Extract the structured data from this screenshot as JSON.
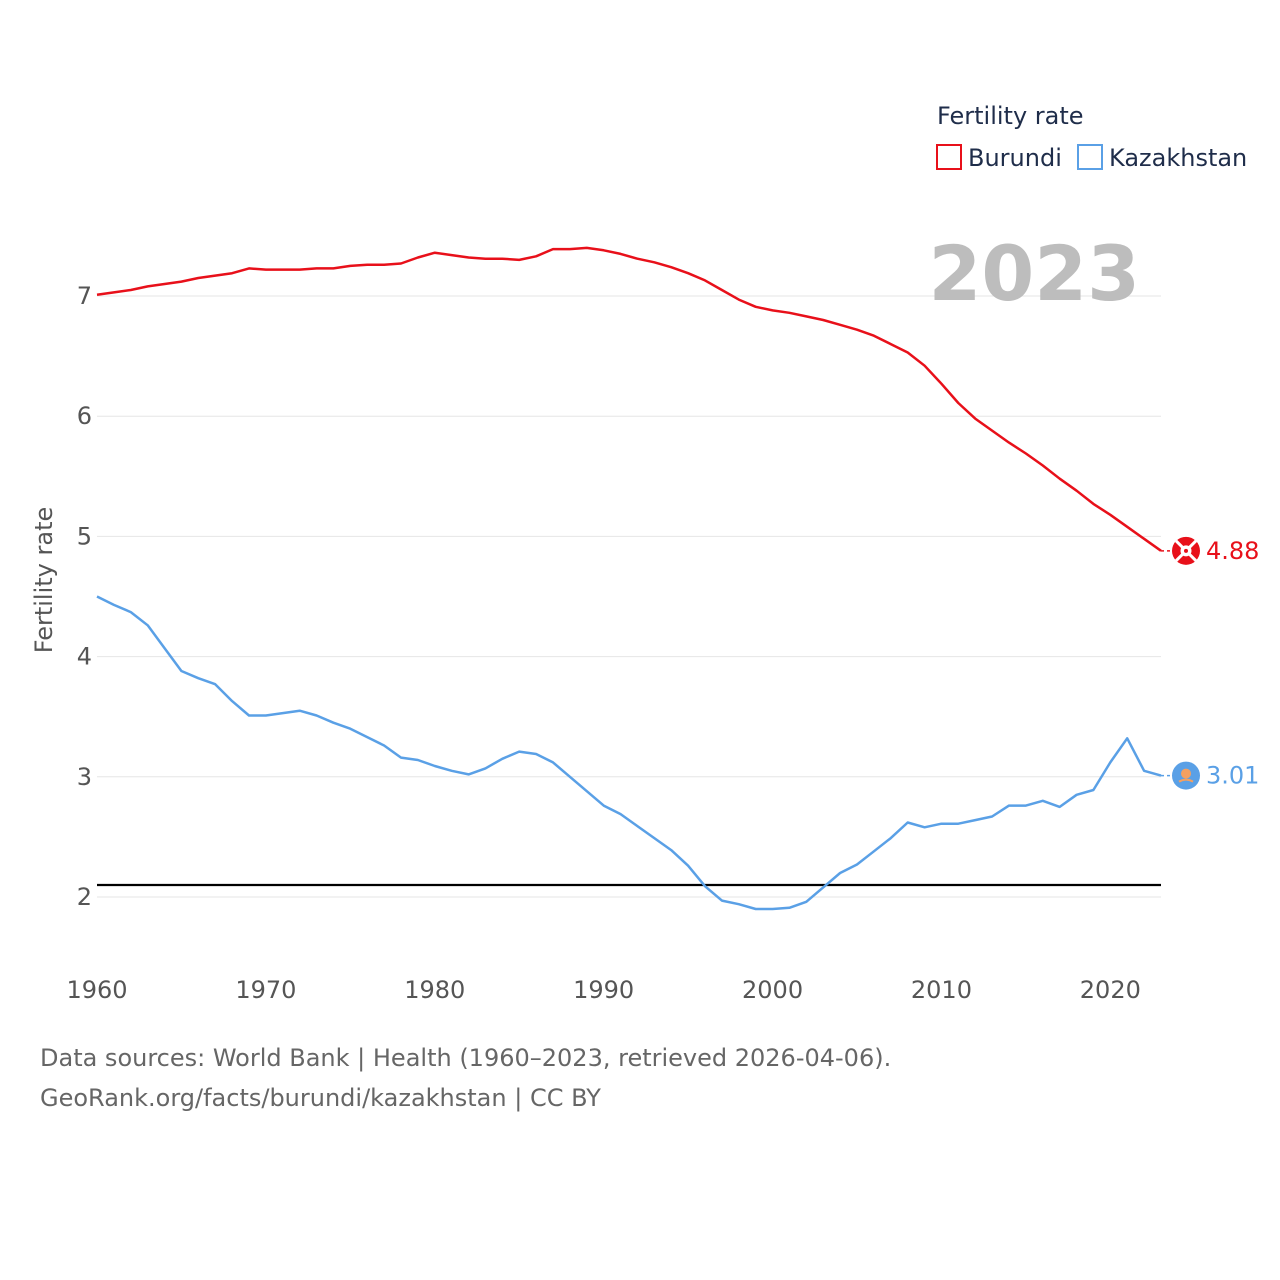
{
  "chart_data": {
    "type": "line",
    "title": "Fertility rate",
    "ylabel": "Fertility rate",
    "xlabel": "",
    "year_label": "2023",
    "xlim": [
      1960,
      2023
    ],
    "ylim": [
      1.5,
      7.5
    ],
    "x_ticks": [
      1960,
      1970,
      1980,
      1990,
      2000,
      2010,
      2020
    ],
    "y_ticks": [
      2,
      3,
      4,
      5,
      6,
      7
    ],
    "reference_line": 2.1,
    "legend": {
      "title": "Fertility rate",
      "position": "top-right"
    },
    "series": [
      {
        "name": "Burundi",
        "color": "#e8101a",
        "end_label": "4.88",
        "x": [
          1960,
          1961,
          1962,
          1963,
          1964,
          1965,
          1966,
          1967,
          1968,
          1969,
          1970,
          1971,
          1972,
          1973,
          1974,
          1975,
          1976,
          1977,
          1978,
          1979,
          1980,
          1981,
          1982,
          1983,
          1984,
          1985,
          1986,
          1987,
          1988,
          1989,
          1990,
          1991,
          1992,
          1993,
          1994,
          1995,
          1996,
          1997,
          1998,
          1999,
          2000,
          2001,
          2002,
          2003,
          2004,
          2005,
          2006,
          2007,
          2008,
          2009,
          2010,
          2011,
          2012,
          2013,
          2014,
          2015,
          2016,
          2017,
          2018,
          2019,
          2020,
          2021,
          2022,
          2023
        ],
        "values": [
          7.01,
          7.03,
          7.05,
          7.08,
          7.1,
          7.12,
          7.15,
          7.17,
          7.19,
          7.23,
          7.22,
          7.22,
          7.22,
          7.23,
          7.23,
          7.25,
          7.26,
          7.26,
          7.27,
          7.32,
          7.36,
          7.34,
          7.32,
          7.31,
          7.31,
          7.3,
          7.33,
          7.39,
          7.39,
          7.4,
          7.38,
          7.35,
          7.31,
          7.28,
          7.24,
          7.19,
          7.13,
          7.05,
          6.97,
          6.91,
          6.88,
          6.86,
          6.83,
          6.8,
          6.76,
          6.72,
          6.67,
          6.6,
          6.53,
          6.42,
          6.27,
          6.11,
          5.98,
          5.88,
          5.78,
          5.69,
          5.59,
          5.48,
          5.38,
          5.27,
          5.18,
          5.08,
          4.98,
          4.88
        ]
      },
      {
        "name": "Kazakhstan",
        "color": "#5aa0e6",
        "end_label": "3.01",
        "x": [
          1960,
          1961,
          1962,
          1963,
          1964,
          1965,
          1966,
          1967,
          1968,
          1969,
          1970,
          1971,
          1972,
          1973,
          1974,
          1975,
          1976,
          1977,
          1978,
          1979,
          1980,
          1981,
          1982,
          1983,
          1984,
          1985,
          1986,
          1987,
          1988,
          1989,
          1990,
          1991,
          1992,
          1993,
          1994,
          1995,
          1996,
          1997,
          1998,
          1999,
          2000,
          2001,
          2002,
          2003,
          2004,
          2005,
          2006,
          2007,
          2008,
          2009,
          2010,
          2011,
          2012,
          2013,
          2014,
          2015,
          2016,
          2017,
          2018,
          2019,
          2020,
          2021,
          2022,
          2023
        ],
        "values": [
          4.5,
          4.43,
          4.37,
          4.26,
          4.07,
          3.88,
          3.82,
          3.77,
          3.63,
          3.51,
          3.51,
          3.53,
          3.55,
          3.51,
          3.45,
          3.4,
          3.33,
          3.26,
          3.16,
          3.14,
          3.09,
          3.05,
          3.02,
          3.07,
          3.15,
          3.21,
          3.19,
          3.12,
          3.0,
          2.88,
          2.76,
          2.69,
          2.59,
          2.49,
          2.39,
          2.26,
          2.09,
          1.97,
          1.94,
          1.9,
          1.9,
          1.91,
          1.96,
          2.08,
          2.2,
          2.27,
          2.38,
          2.49,
          2.62,
          2.58,
          2.61,
          2.61,
          2.64,
          2.67,
          2.76,
          2.76,
          2.8,
          2.75,
          2.85,
          2.89,
          3.12,
          3.32,
          3.05,
          3.01
        ]
      }
    ]
  },
  "footer": {
    "line1": "Data sources: World Bank | Health (1960–2023, retrieved 2026-04-06).",
    "line2": "GeoRank.org/facts/burundi/kazakhstan | CC BY"
  }
}
